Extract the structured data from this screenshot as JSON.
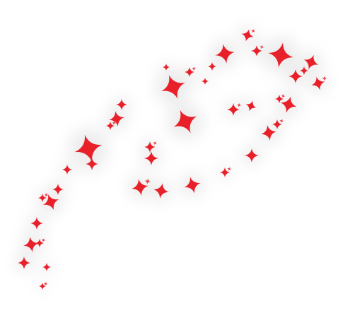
{
  "image": {
    "subject": "sparkle-trail",
    "background_color": "#ffffff",
    "star_color": "#e8202a",
    "glow_color": "#9a9a9a"
  }
}
